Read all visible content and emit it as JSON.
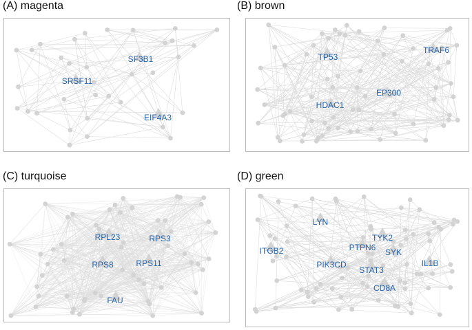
{
  "panels": [
    {
      "id": "A",
      "title": "(A) magenta",
      "hubs": [
        "SF3B1",
        "SRSF11",
        "EIF4A3"
      ]
    },
    {
      "id": "B",
      "title": "(B) brown",
      "hubs": [
        "TP53",
        "TRAF6",
        "EP300",
        "HDAC1"
      ]
    },
    {
      "id": "C",
      "title": "(C) turquoise",
      "hubs": [
        "RPL23",
        "RPS3",
        "RPS8",
        "RPS11",
        "FAU"
      ]
    },
    {
      "id": "D",
      "title": "(D) green",
      "hubs": [
        "LYN",
        "TYK2",
        "ITGB2",
        "PTPN6",
        "SYK",
        "PIK3CD",
        "STAT3",
        "IL1B",
        "CD8A"
      ]
    }
  ],
  "colors": {
    "node": "#d3d3d3",
    "edge": "#dedede",
    "hub_label": "#2563a8",
    "border": "#b9b9b9"
  }
}
